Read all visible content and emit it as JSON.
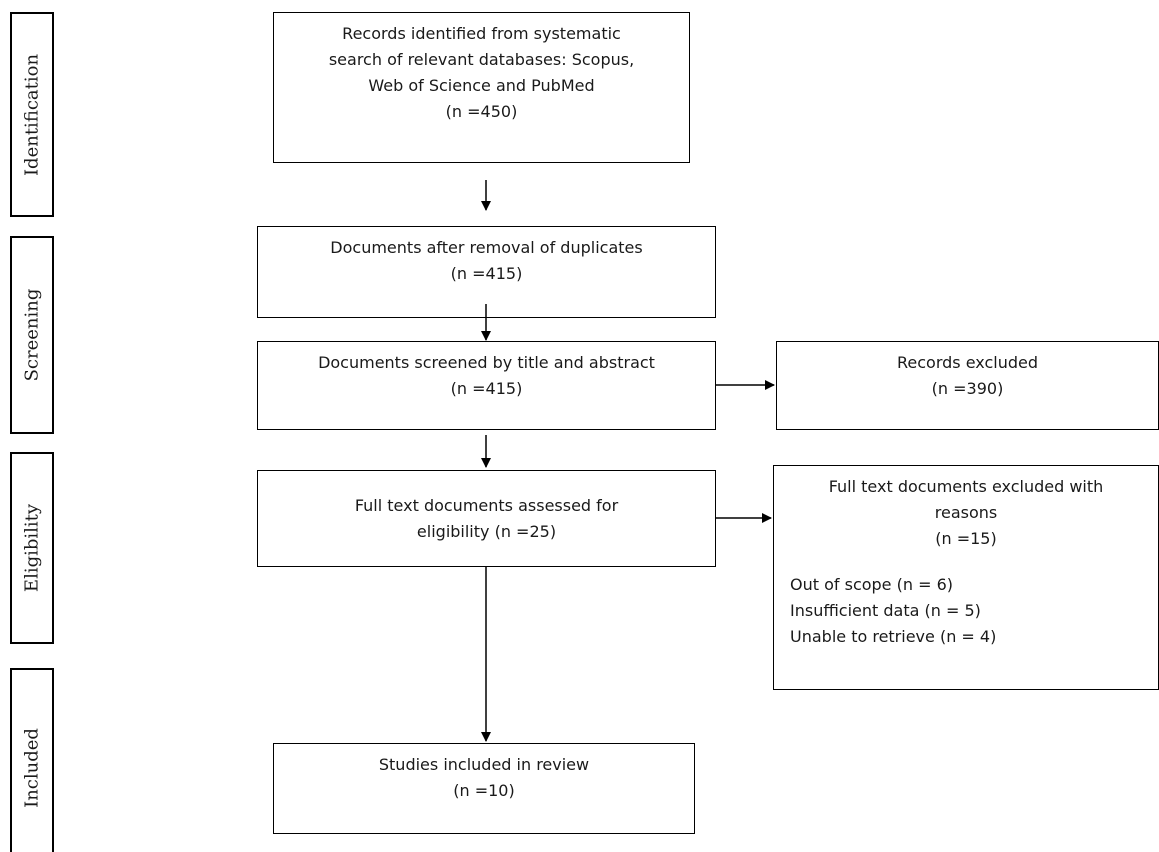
{
  "stages": [
    {
      "id": "identification",
      "label": "Identification"
    },
    {
      "id": "screening",
      "label": "Screening"
    },
    {
      "id": "eligibility",
      "label": "Eligibility"
    },
    {
      "id": "included",
      "label": "Included"
    }
  ],
  "boxes": {
    "identified": {
      "lines": [
        "Records identified from systematic",
        "search of relevant databases: Scopus,",
        "Web of Science and PubMed",
        "(n =450)"
      ]
    },
    "deduplicated": {
      "lines": [
        "Documents after removal of duplicates",
        "(n =415)"
      ]
    },
    "screened": {
      "lines": [
        "Documents screened by title and abstract",
        "(n =415)"
      ]
    },
    "records_excluded": {
      "lines": [
        "Records excluded",
        "(n =390)"
      ]
    },
    "full_text": {
      "lines": [
        "Full text documents assessed for",
        "eligibility (n =25)"
      ]
    },
    "full_text_excluded": {
      "lines": [
        "Full text documents excluded with",
        "reasons",
        "(n =15)"
      ],
      "reasons": [
        "Out of scope (n = 6)",
        "Insufficient data (n = 5)",
        "Unable to retrieve (n = 4)"
      ]
    },
    "included": {
      "lines": [
        "Studies included in review",
        "(n =10)"
      ]
    }
  }
}
